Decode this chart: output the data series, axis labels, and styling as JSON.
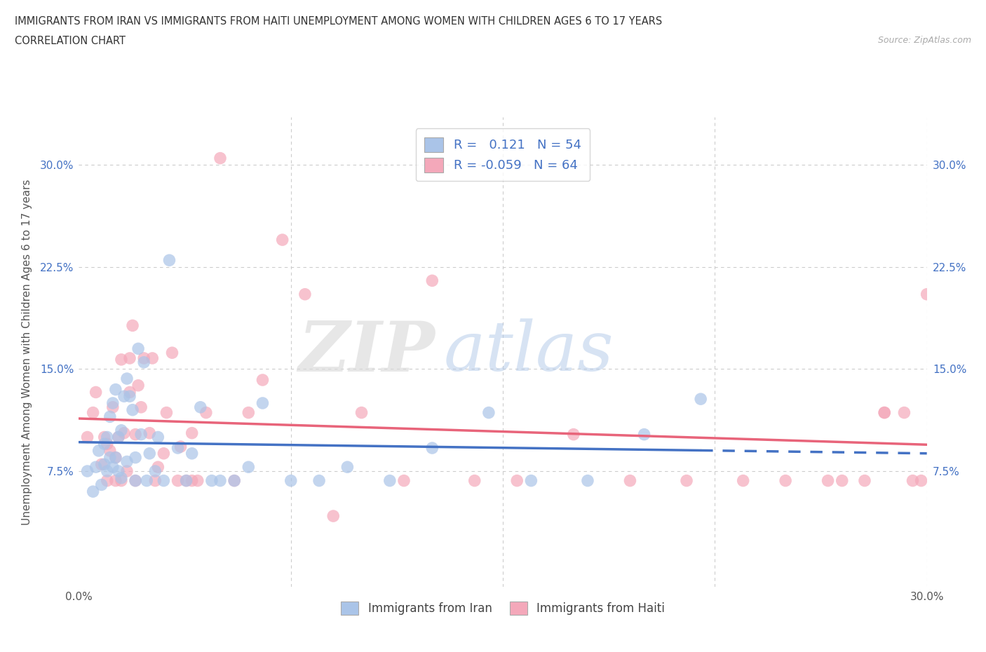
{
  "title_line1": "IMMIGRANTS FROM IRAN VS IMMIGRANTS FROM HAITI UNEMPLOYMENT AMONG WOMEN WITH CHILDREN AGES 6 TO 17 YEARS",
  "title_line2": "CORRELATION CHART",
  "source": "Source: ZipAtlas.com",
  "ylabel": "Unemployment Among Women with Children Ages 6 to 17 years",
  "xlim": [
    0.0,
    0.3
  ],
  "ylim": [
    -0.01,
    0.335
  ],
  "iran_color": "#aac4e8",
  "haiti_color": "#f4a8ba",
  "iran_line_color": "#4472c4",
  "haiti_line_color": "#e8647a",
  "label_color": "#4472c4",
  "iran_R": 0.121,
  "iran_N": 54,
  "haiti_R": -0.059,
  "haiti_N": 64,
  "watermark_text": "ZIP",
  "watermark_text2": "atlas",
  "iran_x": [
    0.003,
    0.005,
    0.006,
    0.007,
    0.008,
    0.009,
    0.009,
    0.01,
    0.01,
    0.011,
    0.011,
    0.012,
    0.012,
    0.013,
    0.013,
    0.014,
    0.014,
    0.015,
    0.015,
    0.016,
    0.017,
    0.017,
    0.018,
    0.019,
    0.02,
    0.02,
    0.021,
    0.022,
    0.023,
    0.024,
    0.025,
    0.027,
    0.028,
    0.03,
    0.032,
    0.035,
    0.038,
    0.04,
    0.043,
    0.047,
    0.05,
    0.055,
    0.06,
    0.065,
    0.075,
    0.085,
    0.095,
    0.11,
    0.125,
    0.145,
    0.16,
    0.18,
    0.2,
    0.22
  ],
  "iran_y": [
    0.075,
    0.06,
    0.078,
    0.09,
    0.065,
    0.08,
    0.095,
    0.075,
    0.1,
    0.085,
    0.115,
    0.078,
    0.125,
    0.085,
    0.135,
    0.075,
    0.1,
    0.07,
    0.105,
    0.13,
    0.082,
    0.143,
    0.13,
    0.12,
    0.068,
    0.085,
    0.165,
    0.102,
    0.155,
    0.068,
    0.088,
    0.075,
    0.1,
    0.068,
    0.23,
    0.092,
    0.068,
    0.088,
    0.122,
    0.068,
    0.068,
    0.068,
    0.078,
    0.125,
    0.068,
    0.068,
    0.078,
    0.068,
    0.092,
    0.118,
    0.068,
    0.068,
    0.102,
    0.128
  ],
  "haiti_x": [
    0.003,
    0.005,
    0.006,
    0.008,
    0.009,
    0.01,
    0.01,
    0.011,
    0.012,
    0.013,
    0.013,
    0.014,
    0.015,
    0.015,
    0.016,
    0.017,
    0.018,
    0.018,
    0.019,
    0.02,
    0.02,
    0.021,
    0.022,
    0.023,
    0.025,
    0.026,
    0.027,
    0.028,
    0.03,
    0.031,
    0.033,
    0.035,
    0.036,
    0.038,
    0.04,
    0.04,
    0.042,
    0.045,
    0.05,
    0.055,
    0.06,
    0.065,
    0.072,
    0.08,
    0.09,
    0.1,
    0.115,
    0.125,
    0.14,
    0.155,
    0.175,
    0.195,
    0.215,
    0.235,
    0.25,
    0.265,
    0.278,
    0.285,
    0.292,
    0.298,
    0.3,
    0.295,
    0.285,
    0.27
  ],
  "haiti_y": [
    0.1,
    0.118,
    0.133,
    0.08,
    0.1,
    0.068,
    0.095,
    0.09,
    0.122,
    0.068,
    0.085,
    0.1,
    0.068,
    0.157,
    0.103,
    0.075,
    0.133,
    0.158,
    0.182,
    0.068,
    0.102,
    0.138,
    0.122,
    0.158,
    0.103,
    0.158,
    0.068,
    0.078,
    0.088,
    0.118,
    0.162,
    0.068,
    0.093,
    0.068,
    0.068,
    0.103,
    0.068,
    0.118,
    0.305,
    0.068,
    0.118,
    0.142,
    0.245,
    0.205,
    0.042,
    0.118,
    0.068,
    0.215,
    0.068,
    0.068,
    0.102,
    0.068,
    0.068,
    0.068,
    0.068,
    0.068,
    0.068,
    0.118,
    0.118,
    0.068,
    0.205,
    0.068,
    0.118,
    0.068
  ]
}
